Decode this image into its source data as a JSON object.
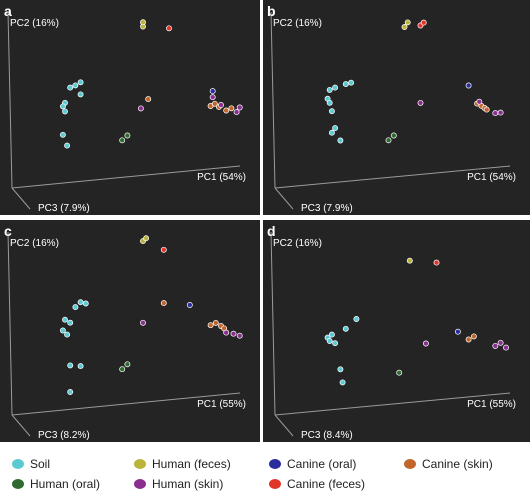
{
  "chart_data": {
    "type": "scatter",
    "projection": "3d",
    "legend_placement": "bottom",
    "legend": [
      {
        "key": "soil",
        "label": "Soil",
        "color": "#5ccad3"
      },
      {
        "key": "human_feces",
        "label": "Human (feces)",
        "color": "#b8b43c"
      },
      {
        "key": "canine_oral",
        "label": "Canine (oral)",
        "color": "#2a2e9c"
      },
      {
        "key": "canine_skin",
        "label": "Canine (skin)",
        "color": "#c1652c"
      },
      {
        "key": "human_oral",
        "label": "Human (oral)",
        "color": "#2f6b30"
      },
      {
        "key": "human_skin",
        "label": "Human (skin)",
        "color": "#8a2f8f"
      },
      {
        "key": "canine_feces",
        "label": "Canine (feces)",
        "color": "#e2352a"
      }
    ],
    "panels": [
      {
        "label": "a",
        "axes": {
          "x": "PC1 (54%)",
          "y": "PC2 (16%)",
          "z": "PC3 (7.9%)"
        },
        "groups": [
          {
            "key": "soil",
            "points": [
              [
                -0.45,
                0.33,
                0
              ],
              [
                -0.6,
                0.25,
                0
              ],
              [
                -0.62,
                0.21,
                0
              ],
              [
                -0.6,
                0.15,
                0
              ],
              [
                -0.55,
                0.42,
                0
              ],
              [
                -0.5,
                0.44,
                0
              ],
              [
                -0.45,
                0.47,
                0
              ],
              [
                -0.62,
                -0.12,
                0
              ],
              [
                -0.58,
                -0.25,
                0
              ]
            ]
          },
          {
            "key": "human_feces",
            "points": [
              [
                0.15,
                1.05,
                0
              ],
              [
                0.15,
                1.1,
                0
              ]
            ]
          },
          {
            "key": "canine_feces",
            "points": [
              [
                0.4,
                1.0,
                0
              ]
            ]
          },
          {
            "key": "human_oral",
            "points": [
              [
                -0.05,
                -0.25,
                0
              ],
              [
                0.0,
                -0.2,
                0
              ]
            ]
          },
          {
            "key": "canine_skin",
            "points": [
              [
                0.2,
                0.2,
                0
              ],
              [
                0.8,
                0.05,
                0
              ],
              [
                0.84,
                0.07,
                0
              ],
              [
                0.88,
                0.03,
                0
              ],
              [
                0.95,
                -0.02,
                0
              ],
              [
                1.0,
                0.0,
                0
              ]
            ]
          },
          {
            "key": "human_skin",
            "points": [
              [
                0.13,
                0.1,
                0
              ],
              [
                0.82,
                0.15,
                0
              ],
              [
                0.9,
                0.05,
                0
              ],
              [
                1.05,
                -0.05,
                0
              ],
              [
                1.08,
                0.0,
                0
              ]
            ]
          },
          {
            "key": "canine_oral",
            "points": [
              [
                0.82,
                0.22,
                0
              ]
            ]
          }
        ]
      },
      {
        "label": "b",
        "axes": {
          "x": "PC1 (54%)",
          "y": "PC2 (16%)",
          "z": "PC3 (7.9%)"
        },
        "groups": [
          {
            "key": "soil",
            "points": [
              [
                -0.55,
                0.42,
                0
              ],
              [
                -0.6,
                0.4,
                0
              ],
              [
                -0.62,
                0.3,
                0
              ],
              [
                -0.6,
                0.25,
                0
              ],
              [
                -0.58,
                0.15,
                0
              ],
              [
                -0.45,
                0.45,
                0
              ],
              [
                -0.4,
                0.46,
                0
              ],
              [
                -0.58,
                -0.1,
                0
              ],
              [
                -0.55,
                -0.05,
                0
              ],
              [
                -0.5,
                -0.2,
                0
              ]
            ]
          },
          {
            "key": "human_feces",
            "points": [
              [
                0.1,
                1.05,
                0
              ],
              [
                0.13,
                1.1,
                0
              ]
            ]
          },
          {
            "key": "canine_feces",
            "points": [
              [
                0.25,
                1.05,
                0
              ],
              [
                0.28,
                1.08,
                0
              ]
            ]
          },
          {
            "key": "human_oral",
            "points": [
              [
                0.0,
                -0.2,
                0
              ],
              [
                -0.05,
                -0.25,
                0
              ]
            ]
          },
          {
            "key": "canine_skin",
            "points": [
              [
                0.78,
                0.08,
                0
              ],
              [
                0.82,
                0.05,
                0
              ],
              [
                0.85,
                0.02,
                0
              ],
              [
                0.87,
                0.0,
                0
              ]
            ]
          },
          {
            "key": "human_skin",
            "points": [
              [
                0.25,
                0.15,
                0
              ],
              [
                0.8,
                0.1,
                0
              ],
              [
                0.95,
                -0.05,
                0
              ],
              [
                1.0,
                -0.05,
                0
              ]
            ]
          },
          {
            "key": "canine_oral",
            "points": [
              [
                0.7,
                0.3,
                0
              ]
            ]
          }
        ]
      },
      {
        "label": "c",
        "axes": {
          "x": "PC1 (55%)",
          "y": "PC2 (16%)",
          "z": "PC3 (8.2%)"
        },
        "groups": [
          {
            "key": "soil",
            "points": [
              [
                -0.6,
                0.32,
                0
              ],
              [
                -0.55,
                0.28,
                0
              ],
              [
                -0.62,
                0.2,
                0
              ],
              [
                -0.58,
                0.15,
                0
              ],
              [
                -0.5,
                0.45,
                0
              ],
              [
                -0.45,
                0.5,
                0
              ],
              [
                -0.4,
                0.48,
                0
              ],
              [
                -0.55,
                -0.2,
                0
              ],
              [
                -0.45,
                -0.22,
                0
              ],
              [
                -0.55,
                -0.5,
                0
              ]
            ]
          },
          {
            "key": "human_feces",
            "points": [
              [
                0.15,
                1.12,
                0
              ],
              [
                0.18,
                1.15,
                0
              ]
            ]
          },
          {
            "key": "canine_feces",
            "points": [
              [
                0.35,
                1.0,
                0
              ]
            ]
          },
          {
            "key": "human_oral",
            "points": [
              [
                0.0,
                -0.25,
                0
              ],
              [
                -0.05,
                -0.3,
                0
              ]
            ]
          },
          {
            "key": "canine_skin",
            "points": [
              [
                0.35,
                0.4,
                0
              ],
              [
                0.8,
                0.1,
                0
              ],
              [
                0.85,
                0.12,
                0
              ],
              [
                0.9,
                0.08,
                0
              ],
              [
                0.93,
                0.05,
                0
              ]
            ]
          },
          {
            "key": "human_skin",
            "points": [
              [
                0.15,
                0.2,
                0
              ],
              [
                0.95,
                0.0,
                0
              ],
              [
                1.02,
                -0.02,
                0
              ],
              [
                1.08,
                -0.05,
                0
              ]
            ]
          },
          {
            "key": "canine_oral",
            "points": [
              [
                0.6,
                0.35,
                0
              ]
            ]
          }
        ]
      },
      {
        "label": "d",
        "axes": {
          "x": "PC1 (55%)",
          "y": "PC2 (16%)",
          "z": "PC3 (8.4%)"
        },
        "groups": [
          {
            "key": "soil",
            "points": [
              [
                -0.58,
                0.15,
                0
              ],
              [
                -0.62,
                0.12,
                0
              ],
              [
                -0.6,
                0.08,
                0
              ],
              [
                -0.55,
                0.05,
                0
              ],
              [
                -0.45,
                0.2,
                0
              ],
              [
                -0.35,
                0.3,
                0
              ],
              [
                -0.5,
                -0.25,
                0
              ],
              [
                -0.48,
                -0.4,
                0
              ]
            ]
          },
          {
            "key": "human_feces",
            "points": [
              [
                0.15,
                0.9,
                0
              ]
            ]
          },
          {
            "key": "canine_feces",
            "points": [
              [
                0.4,
                0.85,
                0
              ]
            ]
          },
          {
            "key": "human_oral",
            "points": [
              [
                0.05,
                -0.35,
                0
              ]
            ]
          },
          {
            "key": "canine_skin",
            "points": [
              [
                0.7,
                -0.05,
                0
              ],
              [
                0.75,
                -0.02,
                0
              ]
            ]
          },
          {
            "key": "human_skin",
            "points": [
              [
                0.3,
                -0.05,
                0
              ],
              [
                0.95,
                -0.15,
                0
              ],
              [
                1.0,
                -0.12,
                0
              ],
              [
                1.05,
                -0.18,
                0
              ]
            ]
          },
          {
            "key": "canine_oral",
            "points": [
              [
                0.6,
                0.05,
                0
              ]
            ]
          }
        ]
      }
    ]
  }
}
